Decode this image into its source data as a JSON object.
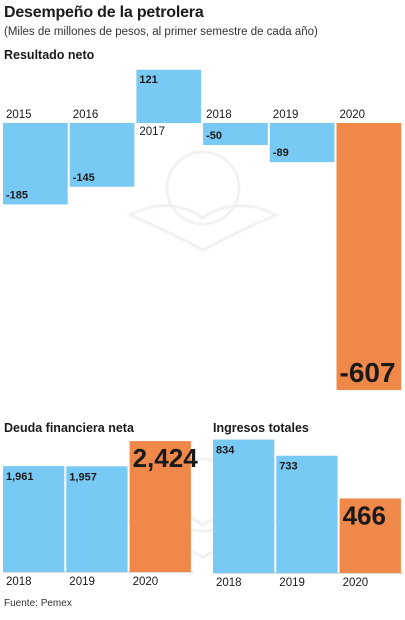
{
  "title": "Desempeño de la petrolera",
  "subtitle": "(Miles de millones de pesos, al primer semestre de cada año)",
  "source": "Fuente: Pemex",
  "colors": {
    "normal": "#79c9f5",
    "highlight": "#f0884a",
    "text": "#1a1a1a",
    "axis": "#bdbdbd"
  },
  "chart_data": [
    {
      "type": "bar",
      "title": "Resultado neto",
      "categories": [
        "2015",
        "2016",
        "2017",
        "2018",
        "2019",
        "2020"
      ],
      "values": [
        -185,
        -145,
        121,
        -50,
        -89,
        -607
      ],
      "highlight_index": 5
    },
    {
      "type": "bar",
      "title": "Deuda financiera neta",
      "categories": [
        "2018",
        "2019",
        "2020"
      ],
      "values": [
        1961,
        1957,
        2424
      ],
      "value_labels": [
        "1,961",
        "1,957",
        "2,424"
      ],
      "highlight_index": 2
    },
    {
      "type": "bar",
      "title": "Ingresos totales",
      "categories": [
        "2018",
        "2019",
        "2020"
      ],
      "values": [
        834,
        733,
        466
      ],
      "highlight_index": 2
    }
  ]
}
